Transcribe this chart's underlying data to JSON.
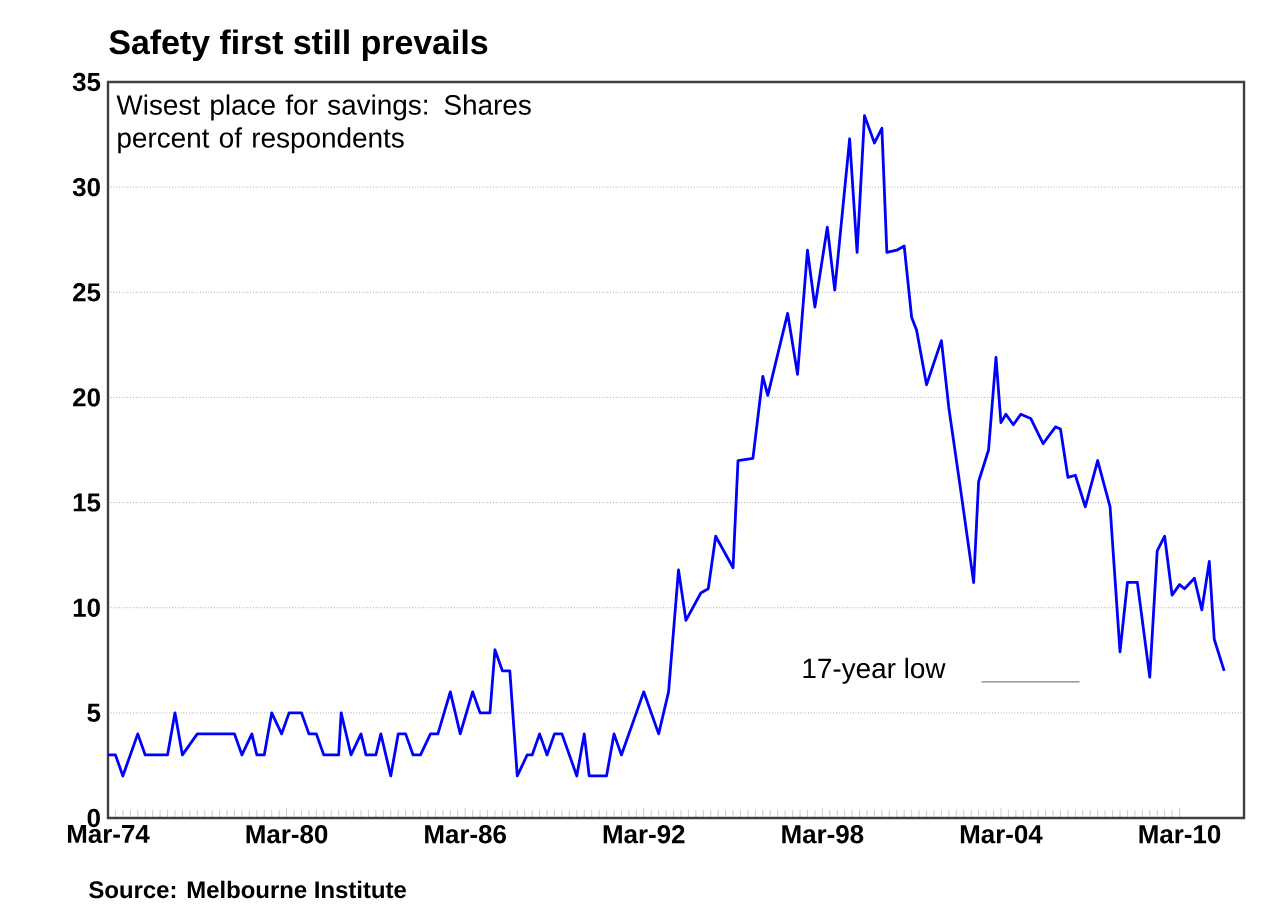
{
  "chart_data": {
    "type": "line",
    "title": "Safety first still prevails",
    "subtitle": "Wisest place for savings: Shares percent of respondents",
    "annotations": [
      "17-year low",
      "Source: Melbourne Institute"
    ],
    "color": "#0000ff",
    "x": [
      "1974-03",
      "1974-06",
      "1974-09",
      "1975-03",
      "1975-06",
      "1976-03",
      "1976-06",
      "1976-09",
      "1977-03",
      "1978-06",
      "1978-09",
      "1979-01",
      "1979-03",
      "1979-06",
      "1979-09",
      "1980-01",
      "1980-04",
      "1980-09",
      "1980-12",
      "1981-03",
      "1981-06",
      "1981-12",
      "1982-01",
      "1982-05",
      "1982-09",
      "1982-11",
      "1983-03",
      "1983-05",
      "1983-09",
      "1983-12",
      "1984-03",
      "1984-06",
      "1984-09",
      "1985-01",
      "1985-04",
      "1985-09",
      "1986-01",
      "1986-06",
      "1986-09",
      "1987-01",
      "1987-03",
      "1987-06",
      "1987-09",
      "1987-12",
      "1988-04",
      "1988-06",
      "1988-09",
      "1988-12",
      "1989-03",
      "1989-06",
      "1989-12",
      "1990-03",
      "1990-05",
      "1990-12",
      "1991-03",
      "1991-06",
      "1991-12",
      "1992-03",
      "1992-09",
      "1993-01",
      "1993-05",
      "1993-08",
      "1994-02",
      "1994-05",
      "1994-08",
      "1995-03",
      "1995-05",
      "1995-11",
      "1996-03",
      "1996-05",
      "1997-01",
      "1997-05",
      "1997-09",
      "1997-12",
      "1998-05",
      "1998-08",
      "1999-02",
      "1999-05",
      "1999-08",
      "1999-12",
      "2000-03",
      "2000-05",
      "2000-09",
      "2000-12",
      "2001-03",
      "2001-05",
      "2001-09",
      "2002-03",
      "2002-06",
      "2002-11",
      "2003-04",
      "2003-06",
      "2003-10",
      "2004-01",
      "2004-03",
      "2004-05",
      "2004-08",
      "2004-11",
      "2005-03",
      "2005-08",
      "2006-01",
      "2006-03",
      "2006-06",
      "2006-09",
      "2007-01",
      "2007-06",
      "2007-11",
      "2008-03",
      "2008-06",
      "2008-10",
      "2009-03",
      "2009-06",
      "2009-09",
      "2009-12",
      "2010-03",
      "2010-05",
      "2010-09",
      "2010-12",
      "2011-03",
      "2011-05",
      "2011-09"
    ],
    "values": [
      3,
      3,
      2,
      4,
      3,
      3,
      5,
      3,
      4,
      4,
      3,
      4,
      3,
      3,
      5,
      4,
      5,
      5,
      4,
      4,
      3,
      3,
      5,
      3,
      4,
      3,
      3,
      4,
      2,
      4,
      4,
      3,
      3,
      4,
      4,
      6,
      4,
      6,
      5,
      5,
      8,
      7,
      7,
      2,
      3,
      3,
      4,
      3,
      4,
      4,
      2,
      4,
      2,
      2,
      4,
      3,
      5,
      6,
      4,
      6,
      11.8,
      9.4,
      10.7,
      10.9,
      13.4,
      11.9,
      17,
      17.1,
      21,
      20.1,
      24,
      21.1,
      27,
      24.3,
      28.1,
      25.1,
      32.3,
      26.9,
      33.4,
      32.1,
      32.8,
      26.9,
      27,
      27.2,
      23.8,
      23.2,
      20.6,
      22.7,
      19.5,
      15.4,
      11.2,
      16,
      17.5,
      21.9,
      18.8,
      19.2,
      18.7,
      19.2,
      19,
      17.8,
      18.6,
      18.5,
      16.2,
      16.3,
      14.8,
      17,
      14.8,
      7.9,
      11.2,
      11.2,
      6.7,
      12.7,
      13.4,
      10.6,
      11.1,
      10.9,
      11.4,
      9.9,
      12.2,
      8.5,
      7
    ],
    "xlim": [
      "1974-03",
      "2012-05"
    ],
    "xticks": [
      {
        "value": "1974-03",
        "label": "Mar-74"
      },
      {
        "value": "1980-03",
        "label": "Mar-80"
      },
      {
        "value": "1986-03",
        "label": "Mar-86"
      },
      {
        "value": "1992-03",
        "label": "Mar-92"
      },
      {
        "value": "1998-03",
        "label": "Mar-98"
      },
      {
        "value": "2004-03",
        "label": "Mar-04"
      },
      {
        "value": "2010-03",
        "label": "Mar-10"
      }
    ],
    "ylim": [
      0,
      35
    ],
    "yticks": [
      0,
      5,
      10,
      15,
      20,
      25,
      30,
      35
    ],
    "grid": "y"
  }
}
